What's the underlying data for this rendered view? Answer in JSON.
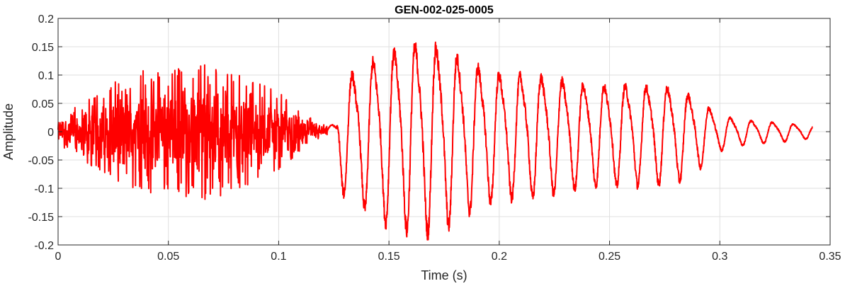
{
  "chart_data": {
    "type": "line",
    "title": "GEN-002-025-0005",
    "xlabel": "Time (s)",
    "ylabel": "Amplitude",
    "xlim": [
      0,
      0.35
    ],
    "ylim": [
      -0.2,
      0.2
    ],
    "x_ticks": [
      0,
      0.05,
      0.1,
      0.15,
      0.2,
      0.25,
      0.3,
      0.35
    ],
    "x_tick_labels": [
      "0",
      "0.05",
      "0.1",
      "0.15",
      "0.2",
      "0.25",
      "0.3",
      "0.35"
    ],
    "y_ticks": [
      -0.2,
      -0.15,
      -0.1,
      -0.05,
      0,
      0.05,
      0.1,
      0.15,
      0.2
    ],
    "y_tick_labels": [
      "-0.2",
      "-0.15",
      "-0.1",
      "-0.05",
      "0",
      "0.05",
      "0.1",
      "0.15",
      "0.2"
    ],
    "grid": true,
    "series": [
      {
        "color": "#ff0000",
        "segments": [
          {
            "x_start": 0.0,
            "x_end": 0.122,
            "kind": "noise",
            "envelope": [
              [
                0.0,
                0.02
              ],
              [
                0.005,
                0.04
              ],
              [
                0.01,
                0.05
              ],
              [
                0.02,
                0.07
              ],
              [
                0.03,
                0.1
              ],
              [
                0.04,
                0.11
              ],
              [
                0.05,
                0.105
              ],
              [
                0.06,
                0.12
              ],
              [
                0.07,
                0.12
              ],
              [
                0.08,
                0.105
              ],
              [
                0.09,
                0.09
              ],
              [
                0.1,
                0.07
              ],
              [
                0.11,
                0.035
              ],
              [
                0.12,
                0.015
              ],
              [
                0.122,
                0.01
              ]
            ]
          },
          {
            "x_start": 0.122,
            "x_end": 0.342,
            "kind": "tone",
            "frequency_hz": 105,
            "envelope": [
              [
                0.122,
                0.01
              ],
              [
                0.126,
                0.02
              ],
              [
                0.128,
                0.11
              ],
              [
                0.135,
                0.13
              ],
              [
                0.145,
                0.16
              ],
              [
                0.155,
                0.18
              ],
              [
                0.165,
                0.19
              ],
              [
                0.175,
                0.18
              ],
              [
                0.185,
                0.15
              ],
              [
                0.2,
                0.125
              ],
              [
                0.22,
                0.12
              ],
              [
                0.24,
                0.1
              ],
              [
                0.26,
                0.1
              ],
              [
                0.28,
                0.095
              ],
              [
                0.29,
                0.07
              ],
              [
                0.3,
                0.035
              ],
              [
                0.31,
                0.025
              ],
              [
                0.33,
                0.018
              ],
              [
                0.342,
                0.012
              ]
            ]
          }
        ]
      }
    ]
  }
}
